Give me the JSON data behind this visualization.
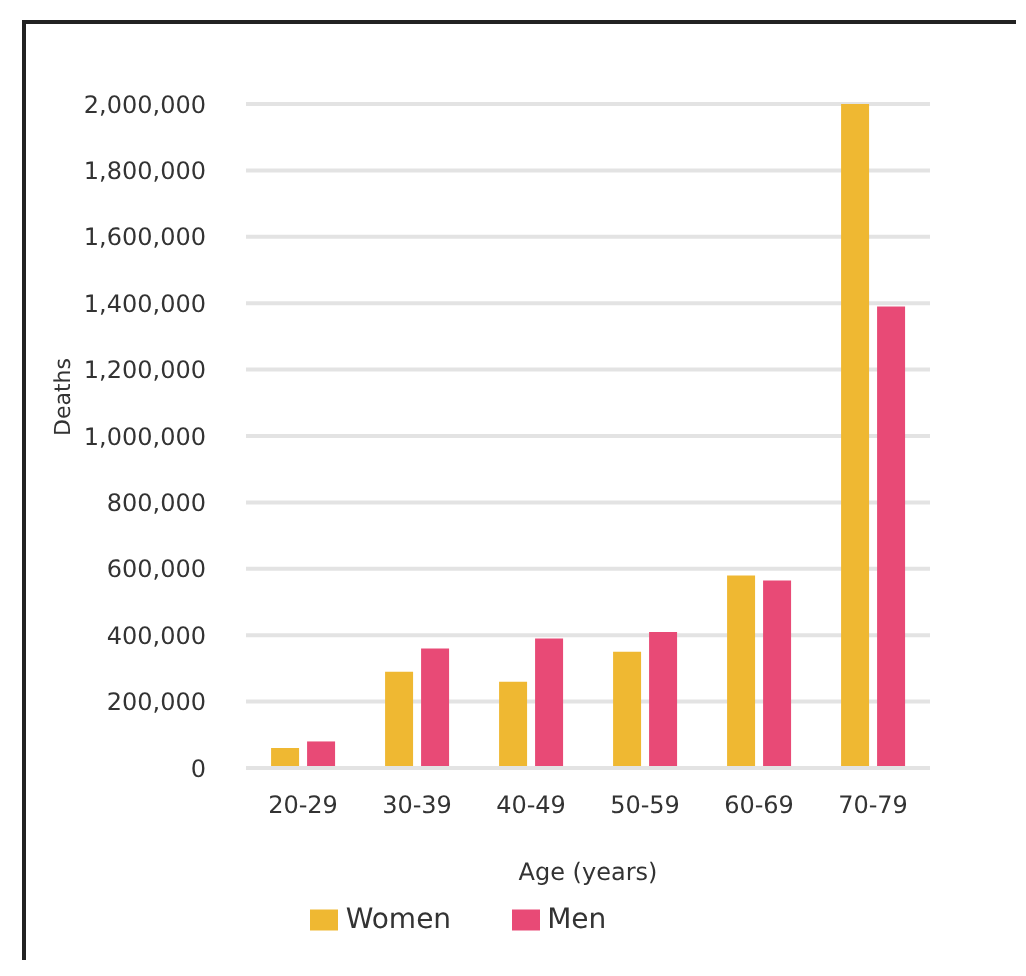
{
  "chart_data": {
    "type": "bar",
    "xlabel": "Age (years)",
    "ylabel": "Deaths",
    "categories": [
      "20-29",
      "30-39",
      "40-49",
      "50-59",
      "60-69",
      "70-79"
    ],
    "series": [
      {
        "name": "Women",
        "color": "#efb832",
        "values": [
          60000,
          290000,
          260000,
          350000,
          580000,
          2000000
        ]
      },
      {
        "name": "Men",
        "color": "#e84a76",
        "values": [
          80000,
          360000,
          390000,
          410000,
          565000,
          1390000
        ]
      }
    ],
    "ylim": [
      0,
      2000000
    ],
    "yticks": [
      0,
      {
        "value": 200000,
        "label": "200,000"
      },
      {
        "value": 400000,
        "label": "400,000"
      },
      {
        "value": 600000,
        "label": "600,000"
      },
      {
        "value": 800000,
        "label": "800,000"
      },
      {
        "value": 1000000,
        "label": "1,000,000"
      },
      {
        "value": 1200000,
        "label": "1,200,000"
      },
      {
        "value": 1400000,
        "label": "1,400,000"
      },
      {
        "value": 1600000,
        "label": "1,600,000"
      },
      {
        "value": 1800000,
        "label": "1,800,000"
      },
      {
        "value": 2000000,
        "label": "2,000,000"
      }
    ],
    "grid": "y",
    "legend": "bottom"
  }
}
